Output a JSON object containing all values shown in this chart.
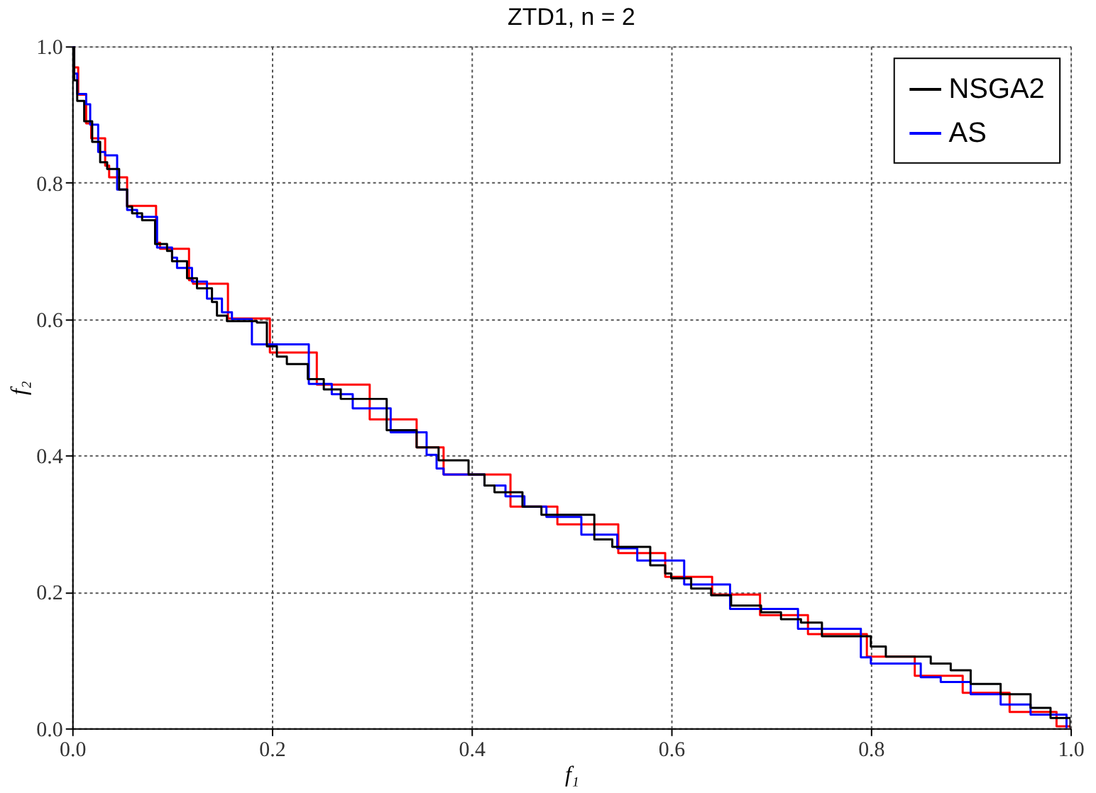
{
  "chart_data": {
    "type": "step",
    "title": "ZTD1, n = 2",
    "xlabel": "f₁",
    "ylabel": "f₂",
    "xlim": [
      0,
      1
    ],
    "ylim": [
      0,
      1
    ],
    "xticks": [
      {
        "value": 0,
        "label": "0.0"
      },
      0.2,
      0.4,
      0.6,
      0.8,
      {
        "value": 1,
        "label": "1.0"
      }
    ],
    "yticks": [
      {
        "value": 0,
        "label": "0.0"
      },
      0.2,
      0.4,
      0.6,
      0.8,
      {
        "value": 1,
        "label": "1.0"
      }
    ],
    "grid": true,
    "legend": "top right",
    "line_style": "solid",
    "marker": "none",
    "series": [
      {
        "name": "NSGA2",
        "color": "#000000",
        "x": [
          0,
          0.002,
          0.005,
          0.012,
          0.02,
          0.028,
          0.035,
          0.047,
          0.055,
          0.06,
          0.07,
          0.083,
          0.095,
          0.1,
          0.115,
          0.125,
          0.14,
          0.145,
          0.155,
          0.185,
          0.195,
          0.205,
          0.215,
          0.236,
          0.252,
          0.269,
          0.315,
          0.345,
          0.367,
          0.397,
          0.413,
          0.423,
          0.451,
          0.47,
          0.523,
          0.541,
          0.579,
          0.594,
          0.6,
          0.62,
          0.64,
          0.66,
          0.69,
          0.71,
          0.73,
          0.751,
          0.8,
          0.815,
          0.86,
          0.88,
          0.9,
          0.93,
          0.96,
          0.98,
          1.0
        ],
        "values": [
          1.0,
          0.95,
          0.92,
          0.89,
          0.86,
          0.83,
          0.82,
          0.79,
          0.765,
          0.755,
          0.745,
          0.71,
          0.7,
          0.685,
          0.66,
          0.645,
          0.625,
          0.605,
          0.597,
          0.595,
          0.56,
          0.545,
          0.534,
          0.512,
          0.497,
          0.483,
          0.437,
          0.412,
          0.393,
          0.372,
          0.356,
          0.346,
          0.325,
          0.313,
          0.277,
          0.266,
          0.239,
          0.227,
          0.22,
          0.205,
          0.195,
          0.18,
          0.17,
          0.16,
          0.155,
          0.135,
          0.12,
          0.105,
          0.095,
          0.085,
          0.065,
          0.05,
          0.03,
          0.015,
          0.0
        ]
      },
      {
        "name": "AS",
        "color": "#0000ff",
        "x": [
          0,
          0.002,
          0.005,
          0.014,
          0.018,
          0.026,
          0.033,
          0.045,
          0.055,
          0.065,
          0.085,
          0.1,
          0.105,
          0.12,
          0.135,
          0.15,
          0.16,
          0.18,
          0.237,
          0.26,
          0.281,
          0.319,
          0.355,
          0.365,
          0.372,
          0.413,
          0.434,
          0.453,
          0.475,
          0.51,
          0.546,
          0.566,
          0.613,
          0.659,
          0.727,
          0.79,
          0.8,
          0.85,
          0.87,
          0.9,
          0.93,
          0.96,
          0.996
        ],
        "values": [
          1.0,
          0.96,
          0.93,
          0.915,
          0.885,
          0.845,
          0.84,
          0.79,
          0.76,
          0.75,
          0.705,
          0.69,
          0.675,
          0.655,
          0.63,
          0.61,
          0.6,
          0.563,
          0.505,
          0.49,
          0.469,
          0.434,
          0.401,
          0.381,
          0.372,
          0.356,
          0.34,
          0.325,
          0.31,
          0.284,
          0.264,
          0.246,
          0.211,
          0.175,
          0.146,
          0.104,
          0.095,
          0.075,
          0.068,
          0.05,
          0.035,
          0.02,
          0.0
        ]
      },
      {
        "color": "#ff0000",
        "x": [
          0,
          0.002,
          0.006,
          0.014,
          0.019,
          0.033,
          0.037,
          0.055,
          0.084,
          0.088,
          0.117,
          0.121,
          0.156,
          0.198,
          0.245,
          0.298,
          0.345,
          0.372,
          0.439,
          0.486,
          0.547,
          0.594,
          0.641,
          0.689,
          0.737,
          0.796,
          0.844,
          0.892,
          0.939,
          0.986,
          1.0
        ],
        "values": [
          1.0,
          0.969,
          0.929,
          0.887,
          0.865,
          0.825,
          0.808,
          0.766,
          0.712,
          0.703,
          0.657,
          0.652,
          0.601,
          0.551,
          0.504,
          0.453,
          0.412,
          0.372,
          0.325,
          0.299,
          0.257,
          0.222,
          0.196,
          0.166,
          0.138,
          0.105,
          0.077,
          0.052,
          0.024,
          0.003,
          0.0
        ]
      }
    ]
  }
}
